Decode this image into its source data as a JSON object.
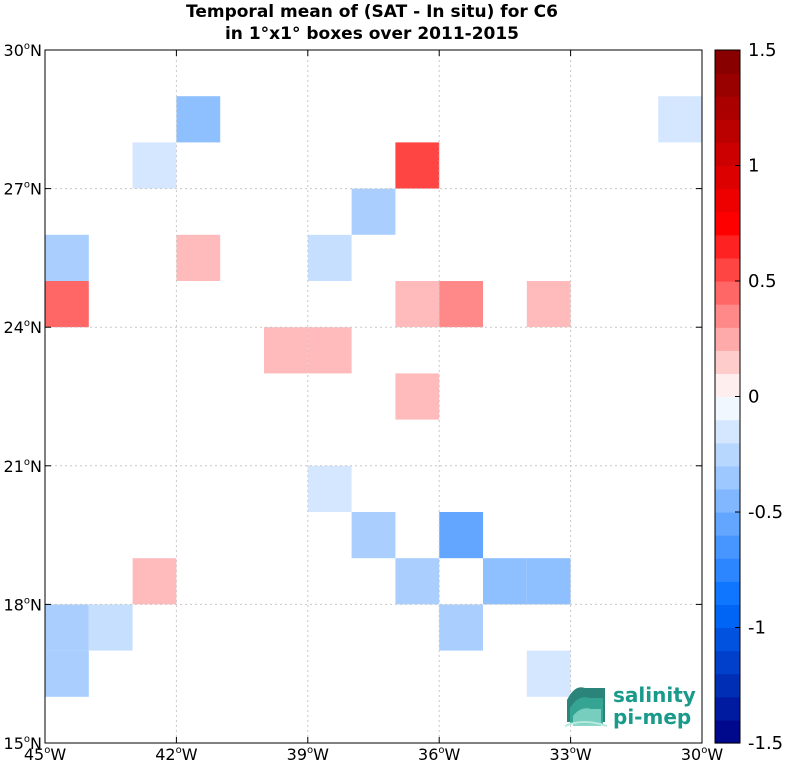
{
  "chart_data": {
    "type": "heatmap",
    "title": [
      "Temporal mean of (SAT - In situ) for C6",
      "in 1°x1° boxes over 2011-2015"
    ],
    "xlim": [
      -45,
      -30
    ],
    "ylim": [
      15,
      30
    ],
    "x_ticks": [
      {
        "value": -45,
        "num": "45",
        "hemi": "W"
      },
      {
        "value": -42,
        "num": "42",
        "hemi": "W"
      },
      {
        "value": -39,
        "num": "39",
        "hemi": "W"
      },
      {
        "value": -36,
        "num": "36",
        "hemi": "W"
      },
      {
        "value": -33,
        "num": "33",
        "hemi": "W"
      },
      {
        "value": -30,
        "num": "30",
        "hemi": "W"
      }
    ],
    "y_ticks": [
      {
        "value": 15,
        "num": "15",
        "hemi": "N"
      },
      {
        "value": 18,
        "num": "18",
        "hemi": "N"
      },
      {
        "value": 21,
        "num": "21",
        "hemi": "N"
      },
      {
        "value": 24,
        "num": "24",
        "hemi": "N"
      },
      {
        "value": 27,
        "num": "27",
        "hemi": "N"
      },
      {
        "value": 30,
        "num": "30",
        "hemi": "N"
      }
    ],
    "grid": true,
    "colorbar": {
      "range": [
        -1.5,
        1.5
      ],
      "n_levels": 30,
      "ticks": [
        {
          "value": 1.5,
          "label": "1.5"
        },
        {
          "value": 1,
          "label": "1"
        },
        {
          "value": 0.5,
          "label": "0.5"
        },
        {
          "value": 0,
          "label": "0"
        },
        {
          "value": -0.5,
          "label": "-0.5"
        },
        {
          "value": -1,
          "label": "-1"
        },
        {
          "value": -1.5,
          "label": "-1.5"
        }
      ]
    },
    "cells": [
      {
        "lon": -42,
        "lat": 28,
        "value": -0.4
      },
      {
        "lon": -31,
        "lat": 28,
        "value": -0.15
      },
      {
        "lon": -43,
        "lat": 27,
        "value": -0.15
      },
      {
        "lon": -37,
        "lat": 27,
        "value": 0.55
      },
      {
        "lon": -38,
        "lat": 26,
        "value": -0.3
      },
      {
        "lon": -45,
        "lat": 25,
        "value": -0.3
      },
      {
        "lon": -42,
        "lat": 25,
        "value": 0.2
      },
      {
        "lon": -39,
        "lat": 25,
        "value": -0.2
      },
      {
        "lon": -45,
        "lat": 24,
        "value": 0.45
      },
      {
        "lon": -37,
        "lat": 24,
        "value": 0.2
      },
      {
        "lon": -36,
        "lat": 24,
        "value": 0.35
      },
      {
        "lon": -34,
        "lat": 24,
        "value": 0.2
      },
      {
        "lon": -40,
        "lat": 23,
        "value": 0.2
      },
      {
        "lon": -39,
        "lat": 23,
        "value": 0.2
      },
      {
        "lon": -37,
        "lat": 22,
        "value": 0.2
      },
      {
        "lon": -39,
        "lat": 20,
        "value": -0.15
      },
      {
        "lon": -38,
        "lat": 19,
        "value": -0.3
      },
      {
        "lon": -36,
        "lat": 19,
        "value": -0.55
      },
      {
        "lon": -43,
        "lat": 18,
        "value": 0.2
      },
      {
        "lon": -37,
        "lat": 18,
        "value": -0.3
      },
      {
        "lon": -35,
        "lat": 18,
        "value": -0.4
      },
      {
        "lon": -34,
        "lat": 18,
        "value": -0.4
      },
      {
        "lon": -45,
        "lat": 17,
        "value": -0.3
      },
      {
        "lon": -44,
        "lat": 17,
        "value": -0.2
      },
      {
        "lon": -36,
        "lat": 17,
        "value": -0.3
      },
      {
        "lon": -45,
        "lat": 16,
        "value": -0.3
      },
      {
        "lon": -34,
        "lat": 16,
        "value": -0.15
      }
    ]
  },
  "logo": {
    "line1": "salinity",
    "line2": "pi-mep"
  },
  "colors": {
    "grid": "#c8c8c8",
    "frame": "#000000",
    "logo_accent": "#1a9a8a"
  }
}
